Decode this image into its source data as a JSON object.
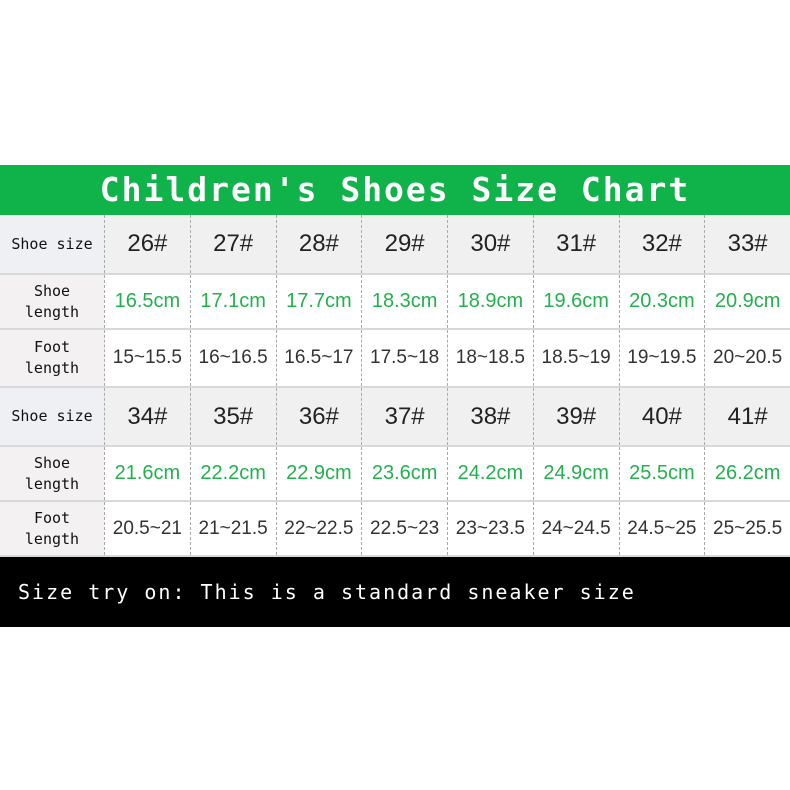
{
  "title": "Children's Shoes Size Chart",
  "labels": {
    "shoe_size": "Shoe size",
    "shoe_length": "Shoe\nlength",
    "foot_length": "Foot\nlength"
  },
  "blocks": [
    {
      "sizes": [
        "26#",
        "27#",
        "28#",
        "29#",
        "30#",
        "31#",
        "32#",
        "33#"
      ],
      "shoe_length": [
        "16.5cm",
        "17.1cm",
        "17.7cm",
        "18.3cm",
        "18.9cm",
        "19.6cm",
        "20.3cm",
        "20.9cm"
      ],
      "foot_length": [
        "15~15.5",
        "16~16.5",
        "16.5~17",
        "17.5~18",
        "18~18.5",
        "18.5~19",
        "19~19.5",
        "20~20.5"
      ]
    },
    {
      "sizes": [
        "34#",
        "35#",
        "36#",
        "37#",
        "38#",
        "39#",
        "40#",
        "41#"
      ],
      "shoe_length": [
        "21.6cm",
        "22.2cm",
        "22.9cm",
        "23.6cm",
        "24.2cm",
        "24.9cm",
        "25.5cm",
        "26.2cm"
      ],
      "foot_length": [
        "20.5~21",
        "21~21.5",
        "22~22.5",
        "22.5~23",
        "23~23.5",
        "24~24.5",
        "24.5~25",
        "25~25.5"
      ]
    }
  ],
  "note": "Size try on: This is a standard sneaker size",
  "colors": {
    "header": "#10b34a",
    "shoe_length_text": "#22b14c",
    "banner": "#000000"
  }
}
